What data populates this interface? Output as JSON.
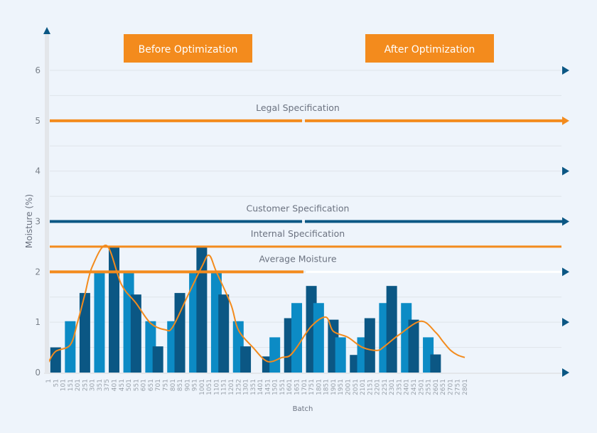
{
  "chart_data": {
    "type": "bar",
    "ylabel": "Moisture (%)",
    "xlabel": "Batch",
    "ylim": [
      0,
      6
    ],
    "yticks": [
      "0",
      "1",
      "2",
      "3",
      "4",
      "5",
      "6"
    ],
    "grid": true,
    "sections": [
      {
        "label": "Before Optimization"
      },
      {
        "label": "After Optimization"
      }
    ],
    "categories": [
      "1",
      "51",
      "101",
      "151",
      "201",
      "251",
      "301",
      "351",
      "375",
      "401",
      "451",
      "501",
      "551",
      "601",
      "651",
      "701",
      "751",
      "801",
      "851",
      "901",
      "951",
      "1001",
      "1051",
      "1101",
      "1151",
      "1201",
      "1252",
      "1301",
      "1351",
      "1401",
      "1451",
      "1501",
      "1551",
      "1601",
      "1651",
      "1701",
      "1751",
      "1801",
      "1851",
      "1901",
      "1951",
      "2001",
      "2051",
      "2101",
      "2151",
      "2201",
      "2251",
      "2301",
      "2351",
      "2401",
      "2451",
      "2501",
      "2551",
      "2601",
      "2651",
      "2701",
      "2751",
      "2801"
    ],
    "bars": [
      {
        "batch": "51",
        "value": 0.5,
        "shade": "dark"
      },
      {
        "batch": "151",
        "value": 1.02,
        "shade": "light"
      },
      {
        "batch": "251",
        "value": 1.58,
        "shade": "dark"
      },
      {
        "batch": "351",
        "value": 2.02,
        "shade": "light"
      },
      {
        "batch": "401",
        "value": 2.52,
        "shade": "dark"
      },
      {
        "batch": "501",
        "value": 2.02,
        "shade": "light"
      },
      {
        "batch": "551",
        "value": 1.55,
        "shade": "dark"
      },
      {
        "batch": "651",
        "value": 1.02,
        "shade": "light"
      },
      {
        "batch": "701",
        "value": 0.52,
        "shade": "dark"
      },
      {
        "batch": "801",
        "value": 1.02,
        "shade": "light"
      },
      {
        "batch": "851",
        "value": 1.58,
        "shade": "dark"
      },
      {
        "batch": "951",
        "value": 2.02,
        "shade": "light"
      },
      {
        "batch": "1001",
        "value": 2.52,
        "shade": "dark"
      },
      {
        "batch": "1101",
        "value": 2.02,
        "shade": "light"
      },
      {
        "batch": "1151",
        "value": 1.55,
        "shade": "dark"
      },
      {
        "batch": "1252",
        "value": 1.02,
        "shade": "light"
      },
      {
        "batch": "1301",
        "value": 0.52,
        "shade": "dark"
      },
      {
        "batch": "1451",
        "value": 0.32,
        "shade": "dark"
      },
      {
        "batch": "1501",
        "value": 0.7,
        "shade": "light"
      },
      {
        "batch": "1601",
        "value": 1.08,
        "shade": "dark"
      },
      {
        "batch": "1651",
        "value": 1.38,
        "shade": "light"
      },
      {
        "batch": "1751",
        "value": 1.72,
        "shade": "dark"
      },
      {
        "batch": "1801",
        "value": 1.38,
        "shade": "light"
      },
      {
        "batch": "1901",
        "value": 1.05,
        "shade": "dark"
      },
      {
        "batch": "1951",
        "value": 0.7,
        "shade": "light"
      },
      {
        "batch": "2051",
        "value": 0.35,
        "shade": "dark"
      },
      {
        "batch": "2101",
        "value": 0.7,
        "shade": "light"
      },
      {
        "batch": "2151",
        "value": 1.08,
        "shade": "dark"
      },
      {
        "batch": "2251",
        "value": 1.38,
        "shade": "light"
      },
      {
        "batch": "2301",
        "value": 1.72,
        "shade": "dark"
      },
      {
        "batch": "2401",
        "value": 1.38,
        "shade": "light"
      },
      {
        "batch": "2451",
        "value": 1.05,
        "shade": "dark"
      },
      {
        "batch": "2551",
        "value": 0.7,
        "shade": "light"
      },
      {
        "batch": "2601",
        "value": 0.36,
        "shade": "dark"
      }
    ],
    "trend": [
      {
        "batch": "1",
        "value": 0.2
      },
      {
        "batch": "51",
        "value": 0.42
      },
      {
        "batch": "151",
        "value": 0.55
      },
      {
        "batch": "201",
        "value": 1.0
      },
      {
        "batch": "251",
        "value": 1.55
      },
      {
        "batch": "301",
        "value": 2.1
      },
      {
        "batch": "375",
        "value": 2.52
      },
      {
        "batch": "451",
        "value": 1.75
      },
      {
        "batch": "551",
        "value": 1.38
      },
      {
        "batch": "651",
        "value": 0.98
      },
      {
        "batch": "751",
        "value": 0.85
      },
      {
        "batch": "801",
        "value": 0.9
      },
      {
        "batch": "901",
        "value": 1.5
      },
      {
        "batch": "1001",
        "value": 2.1
      },
      {
        "batch": "1051",
        "value": 2.33
      },
      {
        "batch": "1101",
        "value": 2.0
      },
      {
        "batch": "1201",
        "value": 1.35
      },
      {
        "batch": "1252",
        "value": 0.85
      },
      {
        "batch": "1351",
        "value": 0.5
      },
      {
        "batch": "1451",
        "value": 0.22
      },
      {
        "batch": "1551",
        "value": 0.3
      },
      {
        "batch": "1601",
        "value": 0.33
      },
      {
        "batch": "1651",
        "value": 0.5
      },
      {
        "batch": "1751",
        "value": 0.92
      },
      {
        "batch": "1851",
        "value": 1.1
      },
      {
        "batch": "1901",
        "value": 0.82
      },
      {
        "batch": "2001",
        "value": 0.7
      },
      {
        "batch": "2101",
        "value": 0.5
      },
      {
        "batch": "2201",
        "value": 0.44
      },
      {
        "batch": "2251",
        "value": 0.52
      },
      {
        "batch": "2351",
        "value": 0.75
      },
      {
        "batch": "2501",
        "value": 1.02
      },
      {
        "batch": "2601",
        "value": 0.8
      },
      {
        "batch": "2651",
        "value": 0.62
      },
      {
        "batch": "2701",
        "value": 0.45
      },
      {
        "batch": "2751",
        "value": 0.35
      },
      {
        "batch": "2801",
        "value": 0.3
      }
    ],
    "spec_lines": [
      {
        "label": "Legal Specification",
        "value": 5.0,
        "color": "#f38b1d",
        "span": "full",
        "arrow": true
      },
      {
        "label": "Customer Specification",
        "value": 3.0,
        "color": "#0b5784",
        "span": "full",
        "arrow": true
      },
      {
        "label": "Internal Specification",
        "value": 2.5,
        "color": "#f38b1d",
        "span": "full",
        "arrow": false
      },
      {
        "label": "Average Moisture",
        "value": 2.0,
        "color": "#f38b1d",
        "span": "before",
        "arrow": true
      }
    ],
    "colors": {
      "background": "#eef4fb",
      "bar_dark": "#0b5784",
      "bar_light": "#0c8bc5",
      "trend": "#f38b1d",
      "section_box": "#f38b1d",
      "axis": "#e3e6ea",
      "grid": "#dfe4ea",
      "tick_text": "#9aa2ab",
      "label_text": "#6b7280",
      "arrow": "#0b5784"
    }
  }
}
